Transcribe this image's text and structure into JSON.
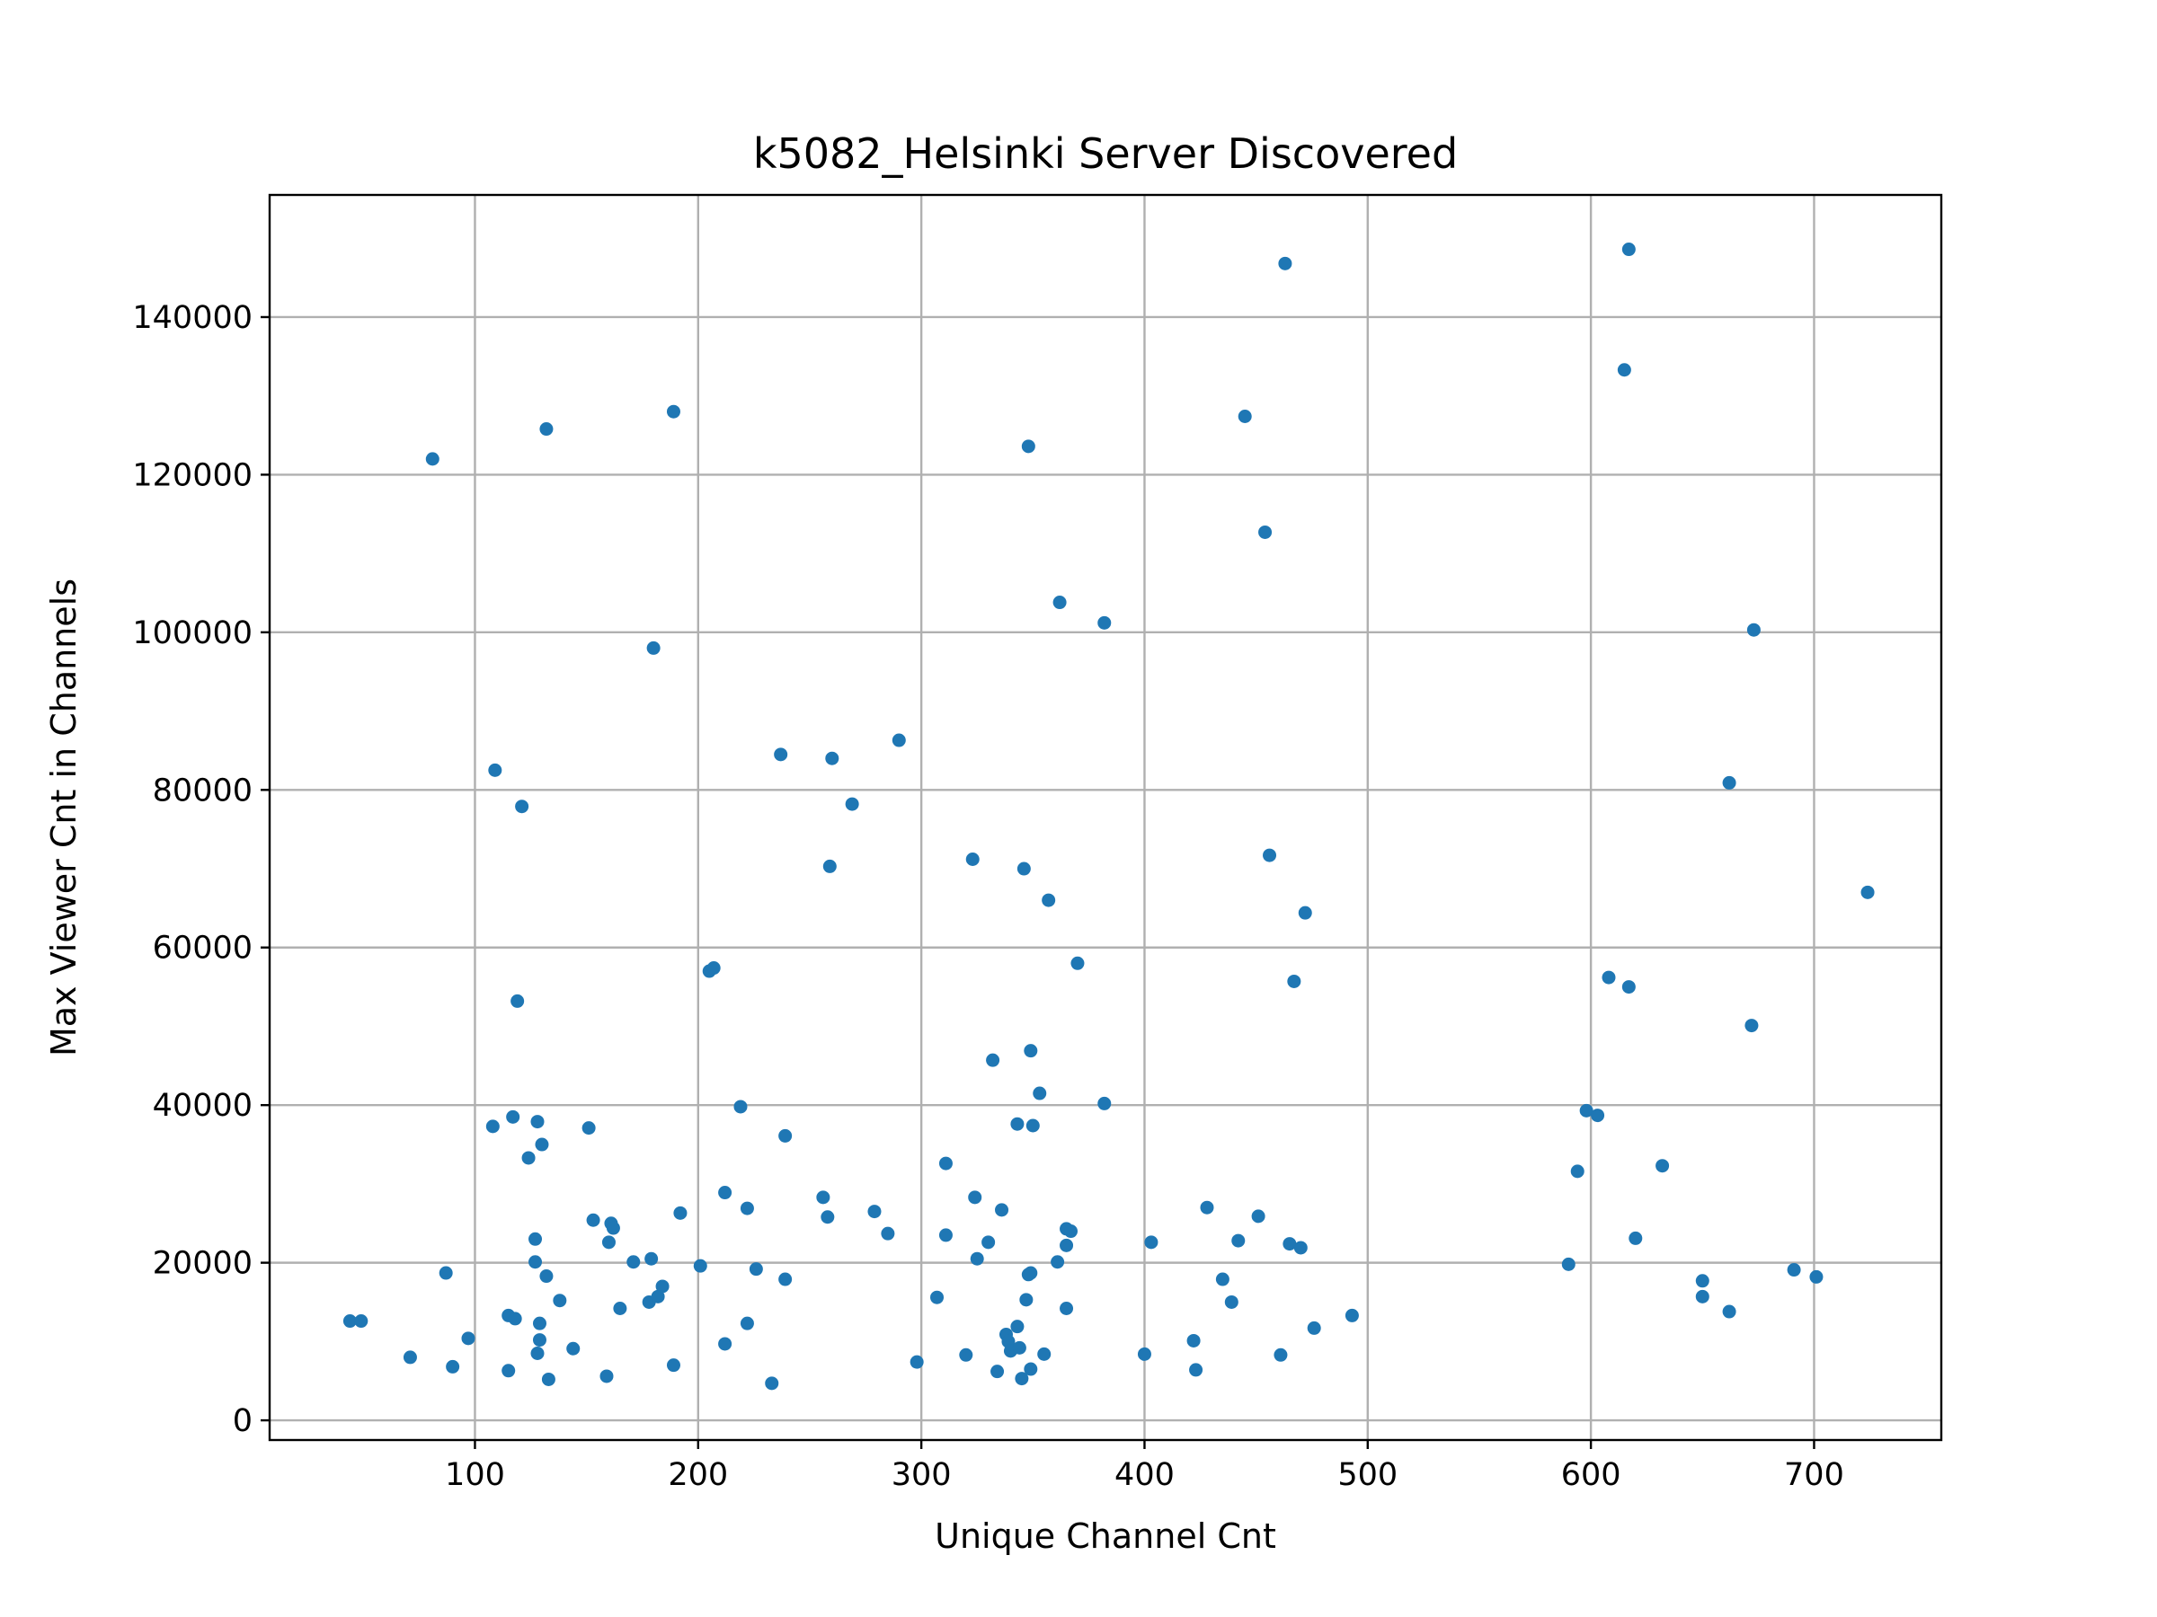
{
  "chart_data": {
    "type": "scatter",
    "title": "k5082_Helsinki Server Discovered",
    "xlabel": "Unique Channel Cnt",
    "ylabel": "Max Viewer Cnt in Channels",
    "xlim": [
      8,
      757
    ],
    "ylim": [
      -2500,
      155500
    ],
    "xticks": [
      100,
      200,
      300,
      400,
      500,
      600,
      700
    ],
    "yticks": [
      0,
      20000,
      40000,
      60000,
      80000,
      100000,
      120000,
      140000
    ],
    "grid": true,
    "marker_color": "#1f77b4",
    "points": [
      [
        44,
        12600
      ],
      [
        49,
        12600
      ],
      [
        71,
        8000
      ],
      [
        81,
        122000
      ],
      [
        87,
        18700
      ],
      [
        90,
        6800
      ],
      [
        97,
        10400
      ],
      [
        108,
        37300
      ],
      [
        109,
        82500
      ],
      [
        115,
        13300
      ],
      [
        115,
        6300
      ],
      [
        117,
        38500
      ],
      [
        118,
        12900
      ],
      [
        119,
        53200
      ],
      [
        121,
        77900
      ],
      [
        124,
        33300
      ],
      [
        127,
        23000
      ],
      [
        127,
        20100
      ],
      [
        128,
        37900
      ],
      [
        128,
        8500
      ],
      [
        129,
        12300
      ],
      [
        129,
        10200
      ],
      [
        130,
        35000
      ],
      [
        132,
        125800
      ],
      [
        132,
        18300
      ],
      [
        133,
        5200
      ],
      [
        138,
        15200
      ],
      [
        144,
        9100
      ],
      [
        151,
        37100
      ],
      [
        153,
        25400
      ],
      [
        160,
        22600
      ],
      [
        159,
        5600
      ],
      [
        161,
        25000
      ],
      [
        162,
        24400
      ],
      [
        165,
        14200
      ],
      [
        171,
        20100
      ],
      [
        178,
        15000
      ],
      [
        179,
        20500
      ],
      [
        180,
        98000
      ],
      [
        182,
        15700
      ],
      [
        184,
        17000
      ],
      [
        189,
        128000
      ],
      [
        189,
        7000
      ],
      [
        192,
        26300
      ],
      [
        201,
        19600
      ],
      [
        205,
        57000
      ],
      [
        207,
        57400
      ],
      [
        212,
        28900
      ],
      [
        212,
        9700
      ],
      [
        219,
        39800
      ],
      [
        222,
        26900
      ],
      [
        222,
        12300
      ],
      [
        226,
        19200
      ],
      [
        233,
        4700
      ],
      [
        237,
        84500
      ],
      [
        239,
        36100
      ],
      [
        239,
        17900
      ],
      [
        256,
        28300
      ],
      [
        258,
        25800
      ],
      [
        259,
        70300
      ],
      [
        260,
        84000
      ],
      [
        269,
        78200
      ],
      [
        279,
        26500
      ],
      [
        285,
        23700
      ],
      [
        290,
        86300
      ],
      [
        298,
        7400
      ],
      [
        307,
        15600
      ],
      [
        311,
        32600
      ],
      [
        311,
        23500
      ],
      [
        320,
        8300
      ],
      [
        323,
        71200
      ],
      [
        324,
        28300
      ],
      [
        325,
        20500
      ],
      [
        330,
        22600
      ],
      [
        332,
        45700
      ],
      [
        334,
        6200
      ],
      [
        336,
        26700
      ],
      [
        338,
        10900
      ],
      [
        339,
        10000
      ],
      [
        340,
        8800
      ],
      [
        343,
        37600
      ],
      [
        343,
        11900
      ],
      [
        344,
        9200
      ],
      [
        345,
        5300
      ],
      [
        346,
        70000
      ],
      [
        347,
        15300
      ],
      [
        348,
        18500
      ],
      [
        348,
        123600
      ],
      [
        349,
        18700
      ],
      [
        349,
        46900
      ],
      [
        349,
        6500
      ],
      [
        350,
        37400
      ],
      [
        353,
        41500
      ],
      [
        355,
        8400
      ],
      [
        357,
        66000
      ],
      [
        361,
        20100
      ],
      [
        362,
        103800
      ],
      [
        365,
        24300
      ],
      [
        365,
        22200
      ],
      [
        365,
        14200
      ],
      [
        367,
        24000
      ],
      [
        370,
        58000
      ],
      [
        382,
        101200
      ],
      [
        382,
        40200
      ],
      [
        400,
        8400
      ],
      [
        403,
        22600
      ],
      [
        422,
        10100
      ],
      [
        423,
        6400
      ],
      [
        428,
        27000
      ],
      [
        435,
        17900
      ],
      [
        439,
        15000
      ],
      [
        442,
        22800
      ],
      [
        445,
        127400
      ],
      [
        451,
        25900
      ],
      [
        454,
        112700
      ],
      [
        456,
        71700
      ],
      [
        461,
        8300
      ],
      [
        463,
        146800
      ],
      [
        465,
        22400
      ],
      [
        467,
        55700
      ],
      [
        470,
        21900
      ],
      [
        472,
        64400
      ],
      [
        476,
        11700
      ],
      [
        493,
        13300
      ],
      [
        590,
        19800
      ],
      [
        594,
        31600
      ],
      [
        598,
        39300
      ],
      [
        603,
        38700
      ],
      [
        608,
        56200
      ],
      [
        615,
        133300
      ],
      [
        617,
        55000
      ],
      [
        617,
        148600
      ],
      [
        620,
        23100
      ],
      [
        632,
        32300
      ],
      [
        650,
        17700
      ],
      [
        650,
        15700
      ],
      [
        662,
        80900
      ],
      [
        662,
        13800
      ],
      [
        672,
        50100
      ],
      [
        673,
        100300
      ],
      [
        691,
        19100
      ],
      [
        701,
        18200
      ],
      [
        724,
        67000
      ]
    ]
  }
}
